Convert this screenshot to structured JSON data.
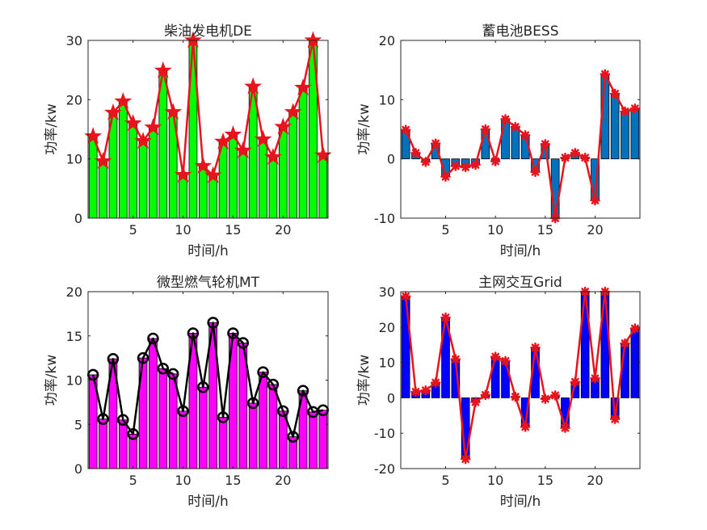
{
  "chart_data": [
    {
      "type": "bar",
      "title": "柴油发电机DE",
      "xlabel": "时间/h",
      "ylabel": "功率/kw",
      "xlim": [
        0.5,
        24.5
      ],
      "ylim": [
        0,
        30
      ],
      "x": [
        1,
        2,
        3,
        4,
        5,
        6,
        7,
        8,
        9,
        10,
        11,
        12,
        13,
        14,
        15,
        16,
        17,
        18,
        19,
        20,
        21,
        22,
        23,
        24
      ],
      "values": [
        13.8,
        9.6,
        17.8,
        19.7,
        16.0,
        13.0,
        15.3,
        24.9,
        17.9,
        7.3,
        30.0,
        8.8,
        7.2,
        12.9,
        14.1,
        11.4,
        22.2,
        13.3,
        10.3,
        15.4,
        17.9,
        22.0,
        30.0,
        10.6
      ],
      "xticks": [
        "5",
        "10",
        "15",
        "20"
      ],
      "yticks": [
        "0",
        "10",
        "20",
        "30"
      ],
      "bar_color": "#00ff00",
      "line_color": "#e8141c",
      "marker": "star"
    },
    {
      "type": "bar",
      "title": "蓄电池BESS",
      "xlabel": "时间/h",
      "ylabel": "功率/kw",
      "xlim": [
        0.5,
        24.5
      ],
      "ylim": [
        -10,
        20
      ],
      "x": [
        1,
        2,
        3,
        4,
        5,
        6,
        7,
        8,
        9,
        10,
        11,
        12,
        13,
        14,
        15,
        16,
        17,
        18,
        19,
        20,
        21,
        22,
        23,
        24
      ],
      "values": [
        4.9,
        1.0,
        -0.5,
        2.6,
        -3.0,
        -1.2,
        -1.4,
        -1.0,
        5.0,
        -0.4,
        6.7,
        5.4,
        4.0,
        -2.2,
        2.5,
        -10.0,
        0.2,
        1.0,
        0.2,
        -7.0,
        14.3,
        11.0,
        8.0,
        8.5
      ],
      "xticks": [
        "5",
        "10",
        "15",
        "20"
      ],
      "yticks": [
        "-10",
        "0",
        "10",
        "20"
      ],
      "bar_color": "#0072bd",
      "line_color": "#e8141c",
      "marker": "asterisk"
    },
    {
      "type": "bar",
      "title": "微型燃气轮机MT",
      "xlabel": "时间/h",
      "ylabel": "功率/kw",
      "xlim": [
        0.5,
        24.5
      ],
      "ylim": [
        0,
        20
      ],
      "x": [
        1,
        2,
        3,
        4,
        5,
        6,
        7,
        8,
        9,
        10,
        11,
        12,
        13,
        14,
        15,
        16,
        17,
        18,
        19,
        20,
        21,
        22,
        23,
        24
      ],
      "values": [
        10.6,
        5.6,
        12.4,
        5.5,
        3.9,
        12.5,
        14.7,
        11.3,
        10.7,
        6.5,
        15.3,
        9.2,
        16.5,
        5.8,
        15.3,
        14.2,
        7.4,
        10.9,
        9.5,
        6.5,
        3.6,
        8.8,
        6.4,
        6.6
      ],
      "xticks": [
        "5",
        "10",
        "15",
        "20"
      ],
      "yticks": [
        "0",
        "5",
        "10",
        "15",
        "20"
      ],
      "bar_color": "#ff00ff",
      "line_color": "#000000",
      "marker": "circle"
    },
    {
      "type": "bar",
      "title": "主网交互Grid",
      "xlabel": "时间/h",
      "ylabel": "功率/kw",
      "xlim": [
        0.5,
        24.5
      ],
      "ylim": [
        -20,
        30
      ],
      "x": [
        1,
        2,
        3,
        4,
        5,
        6,
        7,
        8,
        9,
        10,
        11,
        12,
        13,
        14,
        15,
        16,
        17,
        18,
        19,
        20,
        21,
        22,
        23,
        24
      ],
      "values": [
        28.7,
        1.7,
        2.1,
        4.3,
        22.7,
        10.9,
        -17.3,
        -1.2,
        0.8,
        11.6,
        10.4,
        0.3,
        -8.2,
        14.2,
        -0.3,
        0.7,
        -8.5,
        4.5,
        30.0,
        5.5,
        30.0,
        -6.0,
        15.4,
        19.6
      ],
      "xticks": [
        "5",
        "10",
        "15",
        "20"
      ],
      "yticks": [
        "-20",
        "-10",
        "0",
        "10",
        "20",
        "30"
      ],
      "bar_color": "#0000ff",
      "line_color": "#e8141c",
      "marker": "asterisk"
    }
  ]
}
